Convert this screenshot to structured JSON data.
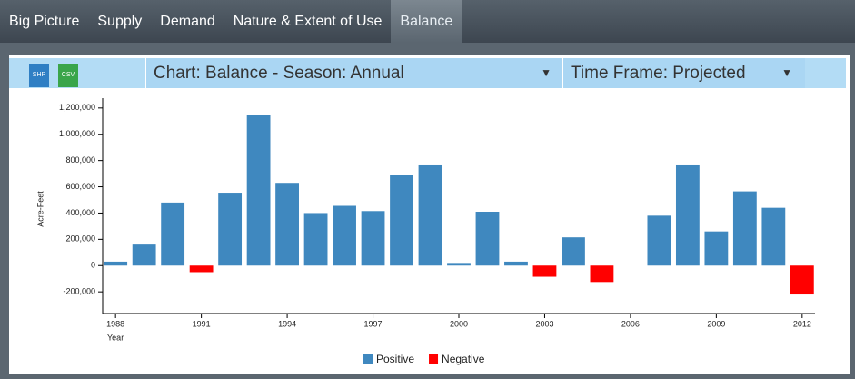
{
  "tabs": [
    "Big Picture",
    "Supply",
    "Demand",
    "Nature & Extent of Use",
    "Balance"
  ],
  "toolbar": {
    "icons": [
      "SHP",
      "CSV"
    ],
    "chart_select": "Chart: Balance - Season: Annual",
    "timeframe_select": "Time Frame: Projected"
  },
  "chart_data": {
    "type": "bar",
    "x_label": "Year",
    "y_label": "Acre-Feet",
    "x": [
      1988,
      1989,
      1990,
      1991,
      1992,
      1993,
      1994,
      1995,
      1996,
      1997,
      1998,
      1999,
      2000,
      2001,
      2002,
      2003,
      2004,
      2005,
      2006,
      2007,
      2008,
      2009,
      2010,
      2011,
      2012
    ],
    "series": [
      {
        "name": "Positive",
        "color": "#3f88bf",
        "values": [
          30000,
          160000,
          480000,
          null,
          555000,
          1145000,
          630000,
          400000,
          455000,
          415000,
          690000,
          770000,
          20000,
          410000,
          30000,
          null,
          215000,
          null,
          null,
          380000,
          770000,
          260000,
          565000,
          440000,
          null
        ]
      },
      {
        "name": "Negative",
        "color": "#ff0000",
        "values": [
          null,
          null,
          null,
          -50000,
          null,
          null,
          null,
          null,
          null,
          null,
          null,
          null,
          null,
          null,
          null,
          -85000,
          null,
          -125000,
          null,
          null,
          null,
          null,
          null,
          null,
          -220000
        ]
      }
    ],
    "xlim": [
      1987.55,
      2012.45
    ],
    "xticks": [
      1988,
      1991,
      1994,
      1997,
      2000,
      2003,
      2006,
      2009,
      2012
    ],
    "ylim": [
      -365000,
      1275000
    ],
    "yticks": [
      {
        "value": -200000,
        "label": "-200,000"
      },
      0,
      {
        "value": 200000,
        "label": "200,000"
      },
      {
        "value": 400000,
        "label": "400,000"
      },
      {
        "value": 600000,
        "label": "600,000"
      },
      {
        "value": 800000,
        "label": "800,000"
      },
      {
        "value": 1000000,
        "label": "1,000,000"
      },
      {
        "value": 1200000,
        "label": "1,200,000"
      }
    ],
    "legend": "bottom"
  }
}
